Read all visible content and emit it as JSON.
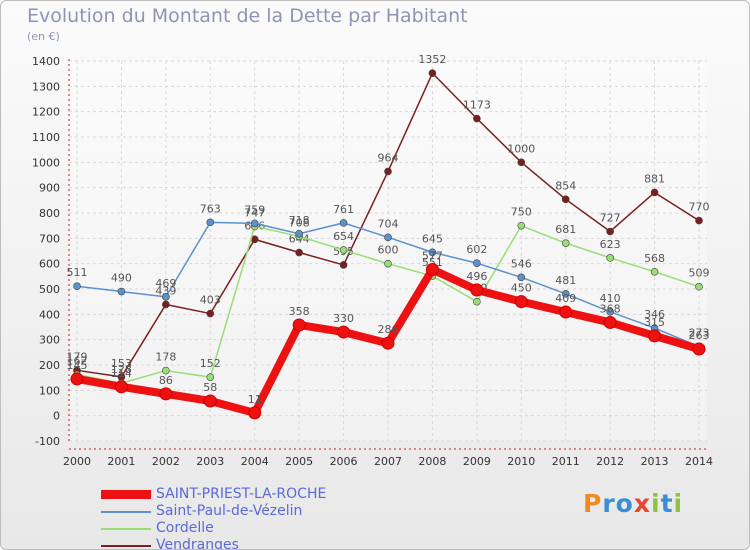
{
  "title": "Evolution du Montant de la Dette par Habitant",
  "unit": "(en €)",
  "logo": {
    "letters": [
      "P",
      "r",
      "o",
      "x",
      "i",
      "t",
      "i"
    ],
    "colors": [
      "#f08a22",
      "#3a8ed6",
      "#3a8ed6",
      "#e8462e",
      "#8bc53f",
      "#3a8ed6",
      "#8bc53f"
    ]
  },
  "chart_data": {
    "type": "line",
    "title": "Evolution du Montant de la Dette par Habitant",
    "ylabel": "(en €)",
    "xlabel": "",
    "ylim": [
      -100,
      1400
    ],
    "yticks": [
      -100,
      0,
      100,
      200,
      300,
      400,
      500,
      600,
      700,
      800,
      900,
      1000,
      1100,
      1200,
      1300,
      1400
    ],
    "x": [
      "2000",
      "2001",
      "2002",
      "2003",
      "2004",
      "2005",
      "2006",
      "2007",
      "2008",
      "2009",
      "2010",
      "2011",
      "2012",
      "2013",
      "2014"
    ],
    "grid": true,
    "legend_position": "bottom-left",
    "series": [
      {
        "name": "Vendranges",
        "color": "#7a1e1e",
        "values": [
          179,
          153,
          439,
          403,
          696,
          644,
          595,
          964,
          1352,
          1173,
          1000,
          854,
          727,
          881,
          770
        ]
      },
      {
        "name": "Cordelle",
        "color": "#99dd77",
        "values": [
          162,
          128,
          178,
          152,
          747,
          708,
          654,
          600,
          551,
          450,
          750,
          681,
          623,
          568,
          509
        ]
      },
      {
        "name": "Saint-Paul-de-Vézelin",
        "color": "#5b92cc",
        "values": [
          511,
          490,
          469,
          763,
          759,
          718,
          761,
          704,
          645,
          602,
          546,
          481,
          410,
          346,
          273
        ]
      },
      {
        "name": "SAINT-PRIEST-LA-ROCHE",
        "color": "#ee1111",
        "values": [
          145,
          114,
          86,
          58,
          11,
          358,
          330,
          286,
          577,
          496,
          450,
          409,
          368,
          315,
          263
        ]
      }
    ]
  }
}
